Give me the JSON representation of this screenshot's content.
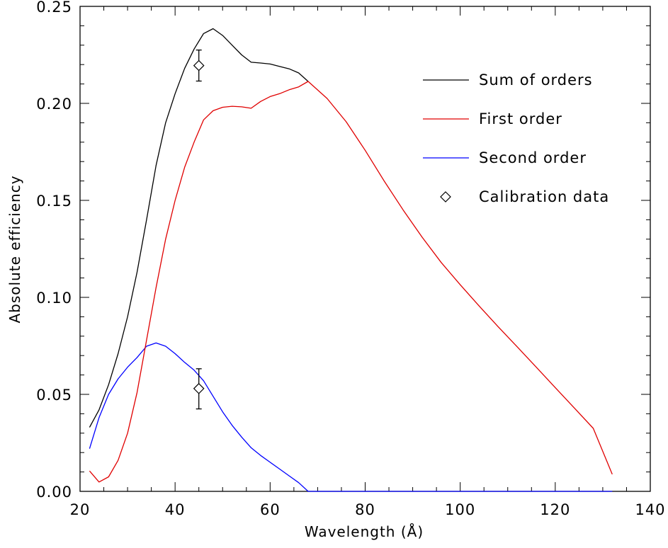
{
  "chart_data": {
    "type": "line",
    "title": "",
    "xlabel": "Wavelength (Å)",
    "ylabel": "Absolute efficiency",
    "xlim": [
      20,
      140
    ],
    "ylim": [
      0,
      0.25
    ],
    "x_ticks": [
      20,
      40,
      60,
      80,
      100,
      120,
      140
    ],
    "x_tick_labels": [
      "20",
      "40",
      "60",
      "80",
      "100",
      "120",
      "140"
    ],
    "x_minor_step": 5,
    "y_ticks": [
      0,
      0.05,
      0.1,
      0.15,
      0.2,
      0.25
    ],
    "y_tick_labels": [
      "0.00",
      "0.05",
      "0.10",
      "0.15",
      "0.20",
      "0.25"
    ],
    "y_minor_step": 0.01,
    "grid": false,
    "legend_position": "top-right",
    "series": [
      {
        "name": "Sum of orders",
        "color": "#000000",
        "points": [
          [
            22,
            0.033
          ],
          [
            24,
            0.042
          ],
          [
            26,
            0.055
          ],
          [
            28,
            0.071
          ],
          [
            30,
            0.09
          ],
          [
            32,
            0.113
          ],
          [
            34,
            0.14
          ],
          [
            36,
            0.168
          ],
          [
            38,
            0.19
          ],
          [
            40,
            0.205
          ],
          [
            42,
            0.218
          ],
          [
            44,
            0.228
          ],
          [
            46,
            0.236
          ],
          [
            48,
            0.2385
          ],
          [
            50,
            0.235
          ],
          [
            52,
            0.23
          ],
          [
            54,
            0.225
          ],
          [
            56,
            0.2212
          ],
          [
            58,
            0.2208
          ],
          [
            60,
            0.2203
          ],
          [
            62,
            0.219
          ],
          [
            64,
            0.2178
          ],
          [
            66,
            0.2157
          ],
          [
            68,
            0.2113
          ]
        ]
      },
      {
        "name": "First order",
        "color": "#e00000",
        "points": [
          [
            22,
            0.0105
          ],
          [
            24,
            0.0048
          ],
          [
            26,
            0.0075
          ],
          [
            28,
            0.016
          ],
          [
            30,
            0.03
          ],
          [
            32,
            0.051
          ],
          [
            34,
            0.078
          ],
          [
            36,
            0.105
          ],
          [
            38,
            0.13
          ],
          [
            40,
            0.15
          ],
          [
            42,
            0.167
          ],
          [
            44,
            0.18
          ],
          [
            46,
            0.1915
          ],
          [
            48,
            0.1962
          ],
          [
            50,
            0.198
          ],
          [
            52,
            0.1985
          ],
          [
            54,
            0.1982
          ],
          [
            56,
            0.1975
          ],
          [
            58,
            0.201
          ],
          [
            60,
            0.2035
          ],
          [
            62,
            0.205
          ],
          [
            64,
            0.207
          ],
          [
            66,
            0.2085
          ],
          [
            68,
            0.2113
          ],
          [
            72,
            0.2025
          ],
          [
            76,
            0.1905
          ],
          [
            80,
            0.1758
          ],
          [
            84,
            0.16
          ],
          [
            88,
            0.145
          ],
          [
            92,
            0.131
          ],
          [
            96,
            0.118
          ],
          [
            100,
            0.1065
          ],
          [
            104,
            0.0955
          ],
          [
            108,
            0.0848
          ],
          [
            112,
            0.0745
          ],
          [
            116,
            0.064
          ],
          [
            120,
            0.0535
          ],
          [
            124,
            0.043
          ],
          [
            128,
            0.0325
          ],
          [
            132,
            0.0088
          ]
        ]
      },
      {
        "name": "Second order",
        "color": "#0000ff",
        "points": [
          [
            22,
            0.022
          ],
          [
            24,
            0.038
          ],
          [
            26,
            0.05
          ],
          [
            28,
            0.058
          ],
          [
            30,
            0.064
          ],
          [
            32,
            0.069
          ],
          [
            34,
            0.0748
          ],
          [
            36,
            0.0765
          ],
          [
            38,
            0.0748
          ],
          [
            40,
            0.071
          ],
          [
            42,
            0.0665
          ],
          [
            44,
            0.0625
          ],
          [
            46,
            0.057
          ],
          [
            48,
            0.049
          ],
          [
            50,
            0.041
          ],
          [
            52,
            0.034
          ],
          [
            54,
            0.028
          ],
          [
            56,
            0.0225
          ],
          [
            58,
            0.0185
          ],
          [
            60,
            0.015
          ],
          [
            62,
            0.0115
          ],
          [
            64,
            0.008
          ],
          [
            66,
            0.0045
          ],
          [
            68,
            0.0
          ],
          [
            132,
            0.0
          ]
        ]
      }
    ],
    "calibration": {
      "name": "Calibration data",
      "marker": "diamond",
      "points": [
        {
          "x": 45,
          "y": 0.2195,
          "yerr_low": 0.2115,
          "yerr_high": 0.2275
        },
        {
          "x": 45,
          "y": 0.053,
          "yerr_low": 0.0425,
          "yerr_high": 0.0632
        }
      ]
    }
  }
}
